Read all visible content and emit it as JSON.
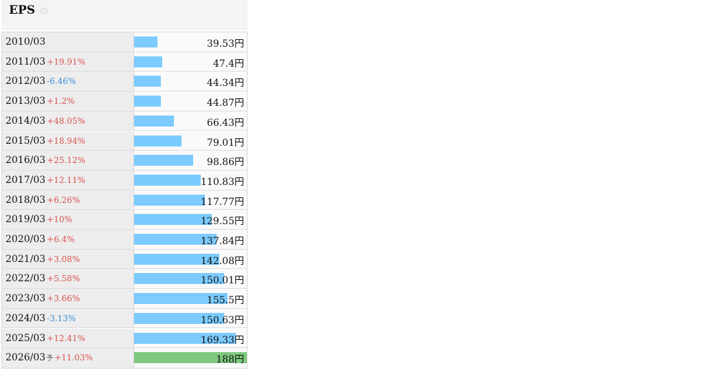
{
  "header": {
    "title": "EPS",
    "help_icon": "question-circle-icon",
    "help_glyph": "?"
  },
  "colors": {
    "bar_actual": "#7ccbff",
    "bar_forecast": "#7ec87e",
    "change_positive": "#d9534f",
    "change_negative": "#3b8fd6"
  },
  "chart_data": {
    "type": "bar",
    "title": "EPS",
    "unit": "円",
    "xlim": [
      0,
      188
    ],
    "categories": [
      "2010/03",
      "2011/03",
      "2012/03",
      "2013/03",
      "2014/03",
      "2015/03",
      "2016/03",
      "2017/03",
      "2018/03",
      "2019/03",
      "2020/03",
      "2021/03",
      "2022/03",
      "2023/03",
      "2024/03",
      "2025/03",
      "2026/03"
    ],
    "values": [
      39.53,
      47.4,
      44.34,
      44.87,
      66.43,
      79.01,
      98.86,
      110.83,
      117.77,
      129.55,
      137.84,
      142.08,
      150.01,
      155.5,
      150.63,
      169.33,
      188
    ],
    "value_labels": [
      "39.53円",
      "47.4円",
      "44.34円",
      "44.87円",
      "66.43円",
      "79.01円",
      "98.86円",
      "110.83円",
      "117.77円",
      "129.55円",
      "137.84円",
      "142.08円",
      "150.01円",
      "155.5円",
      "150.63円",
      "169.33円",
      "188円"
    ],
    "changes": [
      "",
      "+19.91%",
      "-6.46%",
      "+1.2%",
      "+48.05%",
      "+18.94%",
      "+25.12%",
      "+12.11%",
      "+6.26%",
      "+10%",
      "+6.4%",
      "+3.08%",
      "+5.58%",
      "+3.66%",
      "-3.13%",
      "+12.41%",
      "+11.03%"
    ],
    "forecast_marker": "予",
    "forecast_index": 16
  }
}
